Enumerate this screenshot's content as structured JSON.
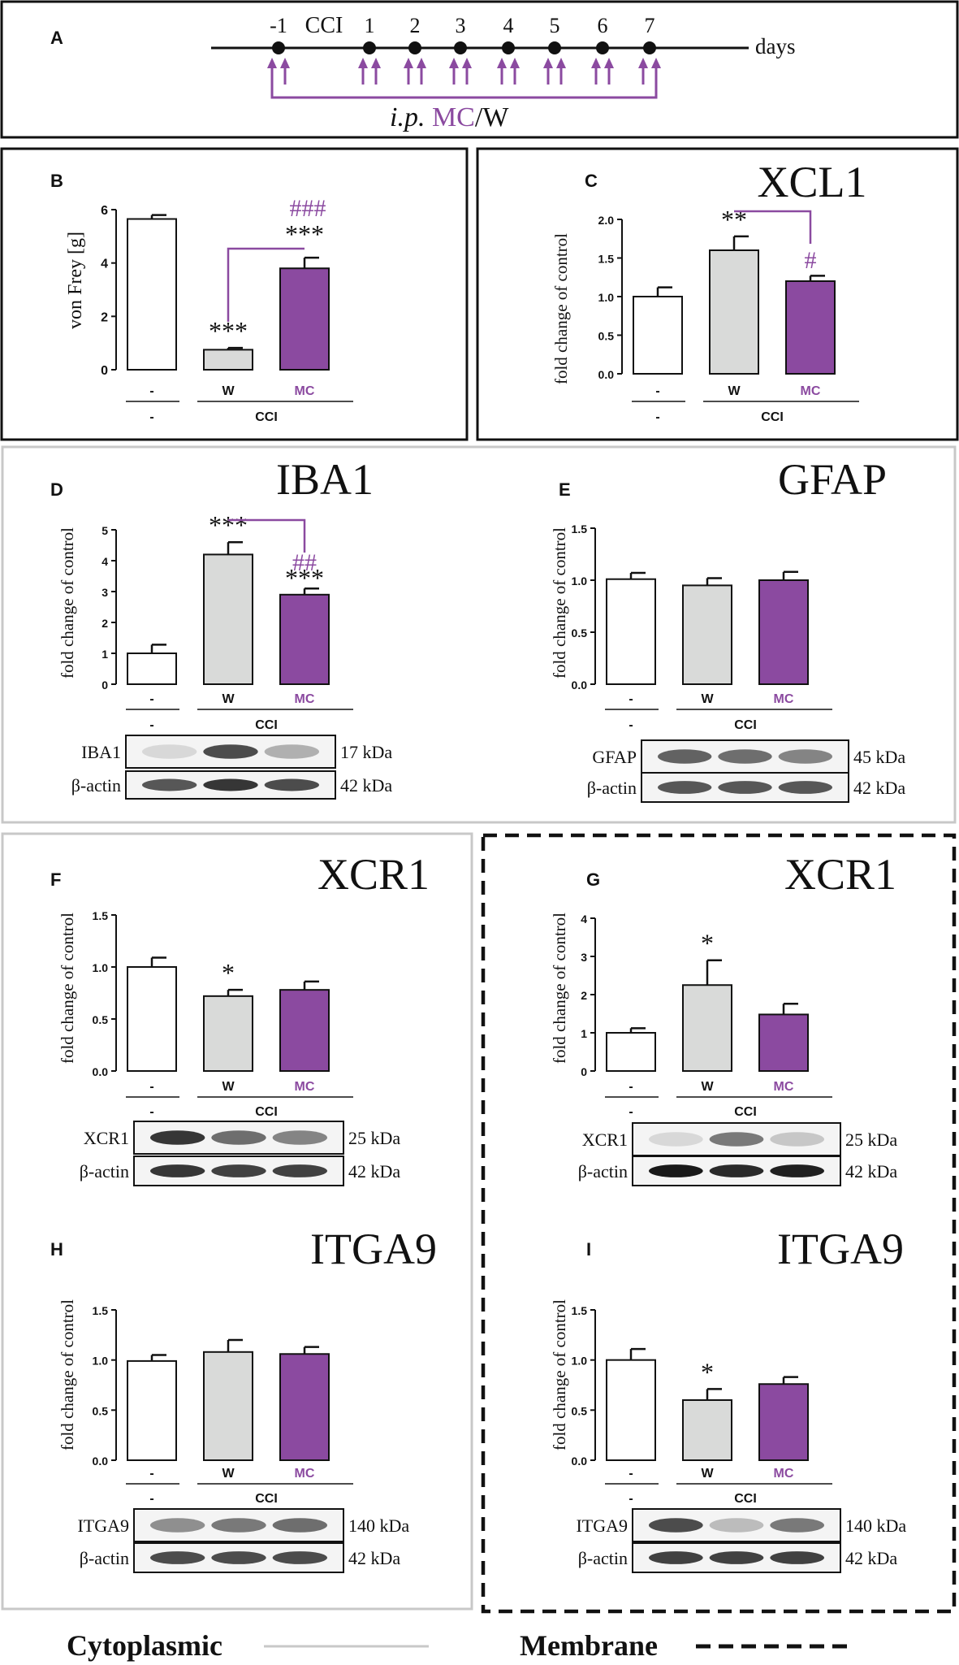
{
  "colors": {
    "w_bar": "#d9dad9",
    "mc_bar": "#8b4aa0",
    "ctrl_bar": "#ffffff",
    "accent": "#8b4aa0",
    "ink": "#111111",
    "panel_gray": "#c8c8c8"
  },
  "panel_a": {
    "letter": "A",
    "days": [
      "-1",
      "CCI",
      "1",
      "2",
      "3",
      "4",
      "5",
      "6",
      "7"
    ],
    "days_label": "days",
    "ip_label": "i.p.",
    "mc_label": "MC",
    "w_label": "/W"
  },
  "legend": {
    "cytoplasmic": "Cytoplasmic",
    "membrane": "Membrane"
  },
  "chart_data": [
    {
      "id": "B",
      "type": "bar",
      "letter": "B",
      "title": "",
      "ylabel": "von Frey  [g]",
      "ylim": [
        0,
        6
      ],
      "yticks": [
        "0",
        "2",
        "4",
        "6"
      ],
      "categories": [
        "-",
        "W",
        "MC"
      ],
      "group_labels": [
        "-",
        "CCI"
      ],
      "values": [
        5.65,
        0.75,
        3.8
      ],
      "errors": [
        0.15,
        0.07,
        0.4
      ],
      "stars": [
        "",
        "***",
        "***"
      ],
      "hash": "###",
      "hash_line": true,
      "blot": null
    },
    {
      "id": "C",
      "type": "bar",
      "letter": "C",
      "title": "XCL1",
      "ylabel": "fold change of control",
      "ylim": [
        0,
        2.0
      ],
      "yticks": [
        "0.0",
        "0.5",
        "1.0",
        "1.5",
        "2.0"
      ],
      "categories": [
        "-",
        "W",
        "MC"
      ],
      "group_labels": [
        "-",
        "CCI"
      ],
      "values": [
        1.0,
        1.6,
        1.2
      ],
      "errors": [
        0.12,
        0.18,
        0.07
      ],
      "stars": [
        "",
        "**",
        ""
      ],
      "hash": "#",
      "hash_line": true,
      "blot": null
    },
    {
      "id": "D",
      "type": "bar",
      "letter": "D",
      "title": "IBA1",
      "ylabel": "fold change of control",
      "ylim": [
        0,
        5
      ],
      "yticks": [
        "0",
        "1",
        "2",
        "3",
        "4",
        "5"
      ],
      "categories": [
        "-",
        "W",
        "MC"
      ],
      "group_labels": [
        "-",
        "CCI"
      ],
      "values": [
        1.0,
        4.2,
        2.9
      ],
      "errors": [
        0.28,
        0.4,
        0.2
      ],
      "stars": [
        "",
        "***",
        "***"
      ],
      "hash": "##",
      "hash_line": true,
      "blot": {
        "rows": [
          {
            "name": "IBA1",
            "kda": "17 kDa"
          },
          {
            "name": "β-actin",
            "kda": "42 kDa"
          }
        ]
      }
    },
    {
      "id": "E",
      "type": "bar",
      "letter": "E",
      "title": "GFAP",
      "ylabel": "fold change of control",
      "ylim": [
        0,
        1.5
      ],
      "yticks": [
        "0.0",
        "0.5",
        "1.0",
        "1.5"
      ],
      "categories": [
        "-",
        "W",
        "MC"
      ],
      "group_labels": [
        "-",
        "CCI"
      ],
      "values": [
        1.01,
        0.95,
        1.0
      ],
      "errors": [
        0.06,
        0.07,
        0.08
      ],
      "stars": [
        "",
        "",
        ""
      ],
      "hash": "",
      "hash_line": false,
      "blot": {
        "rows": [
          {
            "name": "GFAP",
            "kda": "45 kDa"
          },
          {
            "name": "β-actin",
            "kda": "42 kDa"
          }
        ]
      }
    },
    {
      "id": "F",
      "type": "bar",
      "letter": "F",
      "title": "XCR1",
      "ylabel": "fold change of control",
      "ylim": [
        0,
        1.5
      ],
      "yticks": [
        "0.0",
        "0.5",
        "1.0",
        "1.5"
      ],
      "categories": [
        "-",
        "W",
        "MC"
      ],
      "group_labels": [
        "-",
        "CCI"
      ],
      "values": [
        1.0,
        0.72,
        0.78
      ],
      "errors": [
        0.09,
        0.06,
        0.08
      ],
      "stars": [
        "",
        "*",
        ""
      ],
      "hash": "",
      "hash_line": false,
      "blot": {
        "rows": [
          {
            "name": "XCR1",
            "kda": "25 kDa"
          },
          {
            "name": "β-actin",
            "kda": "42 kDa"
          }
        ]
      }
    },
    {
      "id": "G",
      "type": "bar",
      "letter": "G",
      "title": "XCR1",
      "ylabel": "fold change of control",
      "ylim": [
        0,
        4
      ],
      "yticks": [
        "0",
        "1",
        "2",
        "3",
        "4"
      ],
      "categories": [
        "-",
        "W",
        "MC"
      ],
      "group_labels": [
        "-",
        "CCI"
      ],
      "values": [
        1.0,
        2.25,
        1.48
      ],
      "errors": [
        0.12,
        0.65,
        0.28
      ],
      "stars": [
        "",
        "*",
        ""
      ],
      "hash": "",
      "hash_line": false,
      "blot": {
        "rows": [
          {
            "name": "XCR1",
            "kda": "25 kDa"
          },
          {
            "name": "β-actin",
            "kda": "42 kDa"
          }
        ]
      }
    },
    {
      "id": "H",
      "type": "bar",
      "letter": "H",
      "title": "ITGA9",
      "ylabel": "fold change of control",
      "ylim": [
        0,
        1.5
      ],
      "yticks": [
        "0.0",
        "0.5",
        "1.0",
        "1.5"
      ],
      "categories": [
        "-",
        "W",
        "MC"
      ],
      "group_labels": [
        "-",
        "CCI"
      ],
      "values": [
        0.99,
        1.08,
        1.06
      ],
      "errors": [
        0.06,
        0.12,
        0.07
      ],
      "stars": [
        "",
        "",
        ""
      ],
      "hash": "",
      "hash_line": false,
      "blot": {
        "rows": [
          {
            "name": "ITGA9",
            "kda": "140 kDa"
          },
          {
            "name": "β-actin",
            "kda": "42 kDa"
          }
        ]
      }
    },
    {
      "id": "I",
      "type": "bar",
      "letter": "I",
      "title": "ITGA9",
      "ylabel": "fold change of control",
      "ylim": [
        0,
        1.5
      ],
      "yticks": [
        "0.0",
        "0.5",
        "1.0",
        "1.5"
      ],
      "categories": [
        "-",
        "W",
        "MC"
      ],
      "group_labels": [
        "-",
        "CCI"
      ],
      "values": [
        1.0,
        0.6,
        0.76
      ],
      "errors": [
        0.11,
        0.11,
        0.07
      ],
      "stars": [
        "",
        "*",
        ""
      ],
      "hash": "",
      "hash_line": false,
      "blot": {
        "rows": [
          {
            "name": "ITGA9",
            "kda": "140 kDa"
          },
          {
            "name": "β-actin",
            "kda": "42 kDa"
          }
        ]
      }
    }
  ]
}
